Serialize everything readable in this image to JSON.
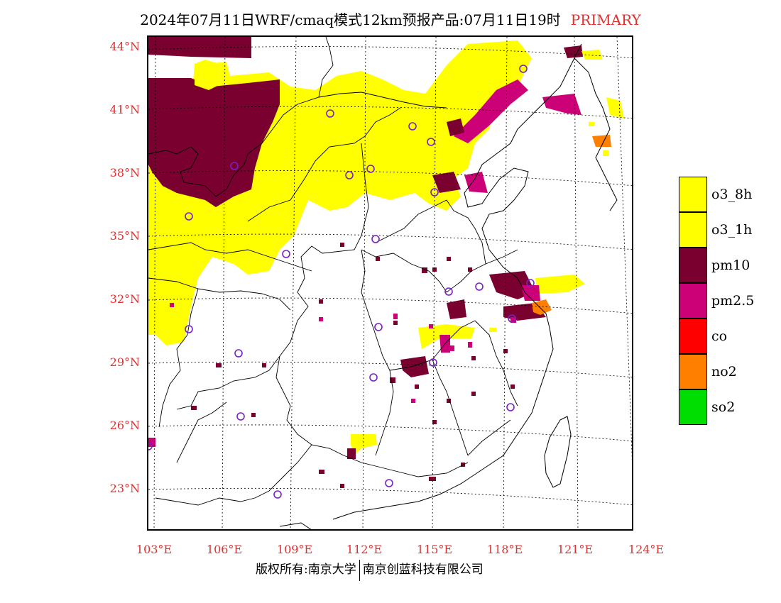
{
  "title": {
    "text": "2024年07月11日WRF/cmaq模式12km预报产品:07月11日19时",
    "tag": "PRIMARY"
  },
  "colors": {
    "tag": "#e03030",
    "axis_labels": "#e03030",
    "o3_8h": "#ffff00",
    "o3_1h": "#ffff00",
    "pm10": "#7a0030",
    "pm25": "#cc0077",
    "co": "#ff0000",
    "no2": "#ff8000",
    "so2": "#00dd00",
    "station_circle": "#7a20c8"
  },
  "lat_labels": [
    "44°N",
    "41°N",
    "38°N",
    "35°N",
    "32°N",
    "29°N",
    "26°N",
    "23°N"
  ],
  "lon_labels": [
    "103°E",
    "106°E",
    "109°E",
    "112°E",
    "115°E",
    "118°E",
    "121°E",
    "124°E"
  ],
  "legend": [
    {
      "label": "o3_8h",
      "color": "#ffff00"
    },
    {
      "label": "o3_1h",
      "color": "#ffff00"
    },
    {
      "label": "pm10",
      "color": "#7a0030"
    },
    {
      "label": "pm2.5",
      "color": "#cc0077"
    },
    {
      "label": "co",
      "color": "#ff0000"
    },
    {
      "label": "no2",
      "color": "#ff8000"
    },
    {
      "label": "so2",
      "color": "#00dd00"
    }
  ],
  "footer": {
    "left": "版权所有:南京大学",
    "right": "南京创蓝科技有限公司"
  }
}
